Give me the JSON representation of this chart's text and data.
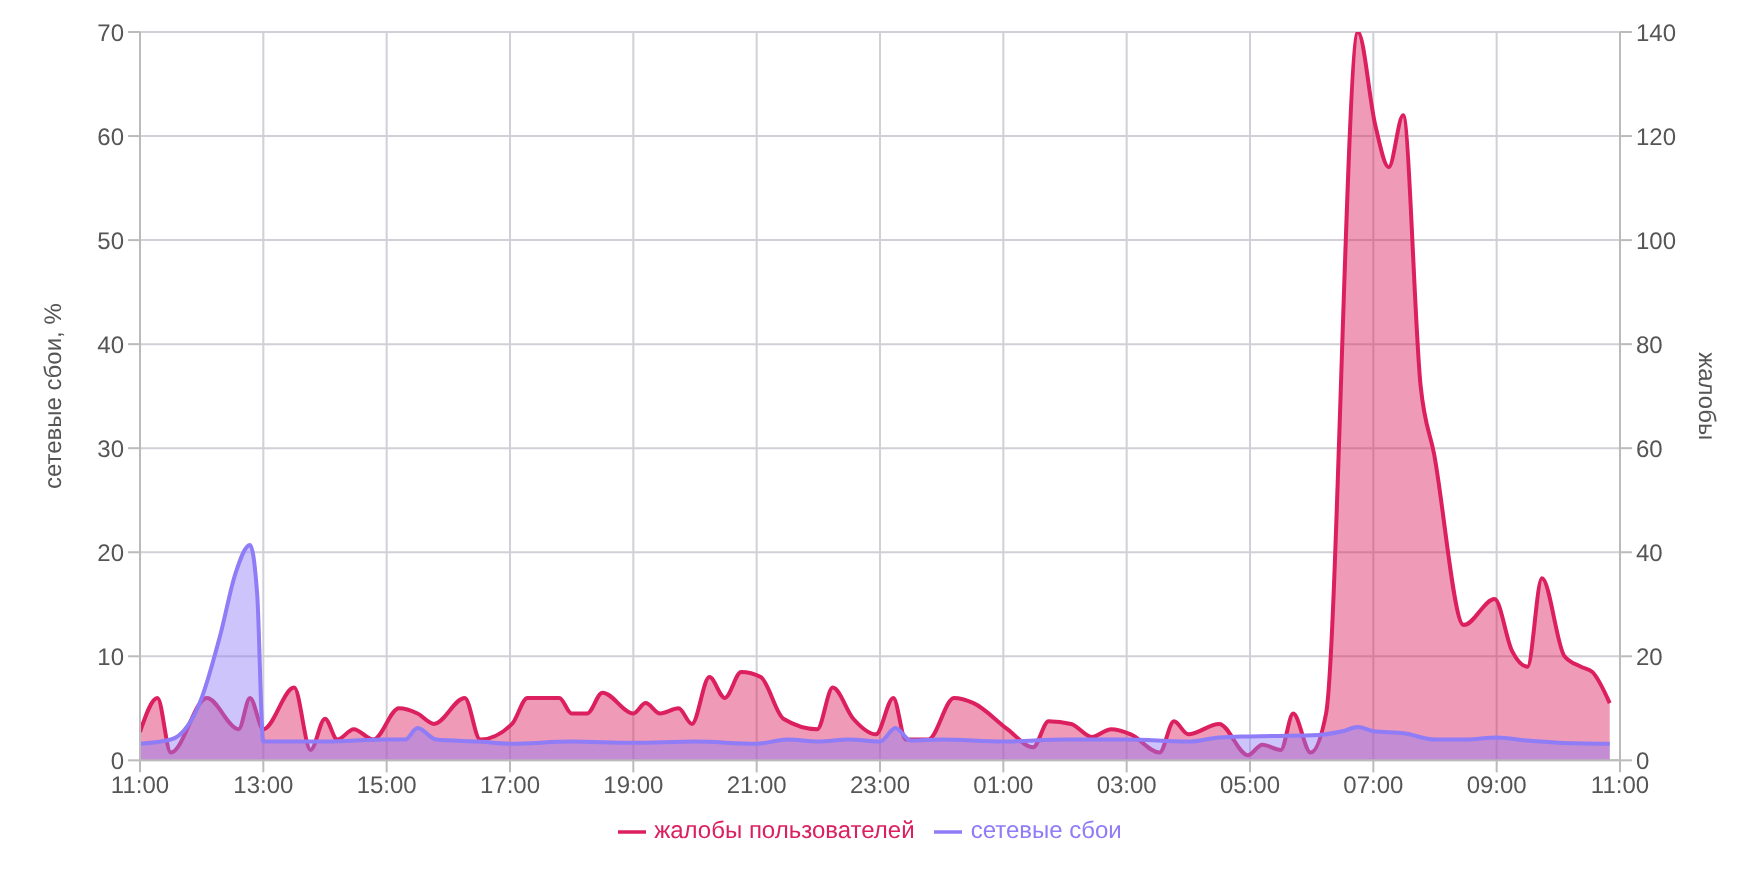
{
  "chart_data": {
    "type": "area",
    "xlim": [
      "2000-01-01T11:00",
      "2000-01-02T11:00"
    ],
    "xticks": [
      {
        "value": "2000-01-01T11:00",
        "label": "11:00"
      },
      {
        "value": "2000-01-01T13:00",
        "label": "13:00"
      },
      {
        "value": "2000-01-01T15:00",
        "label": "15:00"
      },
      {
        "value": "2000-01-01T17:00",
        "label": "17:00"
      },
      {
        "value": "2000-01-01T19:00",
        "label": "19:00"
      },
      {
        "value": "2000-01-01T21:00",
        "label": "21:00"
      },
      {
        "value": "2000-01-01T23:00",
        "label": "23:00"
      },
      {
        "value": "2000-01-02T01:00",
        "label": "01:00"
      },
      {
        "value": "2000-01-02T03:00",
        "label": "03:00"
      },
      {
        "value": "2000-01-02T05:00",
        "label": "05:00"
      },
      {
        "value": "2000-01-02T07:00",
        "label": "07:00"
      },
      {
        "value": "2000-01-02T09:00",
        "label": "09:00"
      },
      {
        "value": "2000-01-02T11:00",
        "label": "11:00"
      }
    ],
    "ylabel": "сетевые сбои, %",
    "y2label": "жалобы",
    "ylim": [
      0,
      70
    ],
    "yticks": [
      0,
      10,
      20,
      30,
      40,
      50,
      60,
      70
    ],
    "y2lim": [
      0,
      140
    ],
    "y2ticks": [
      0,
      20,
      40,
      60,
      80,
      100,
      120,
      140
    ],
    "grid": true,
    "legend": "bottom",
    "marker": "none",
    "series": [
      {
        "name": "жалобы пользователей",
        "color": "#dc1f5e",
        "axis": "y2",
        "x": [
          "2000-01-01T11:00",
          "2000-01-01T11:17",
          "2000-01-01T11:30",
          "2000-01-01T12:05",
          "2000-01-01T12:36",
          "2000-01-01T12:47",
          "2000-01-01T13:00",
          "2000-01-01T13:30",
          "2000-01-01T13:46",
          "2000-01-01T14:00",
          "2000-01-01T14:12",
          "2000-01-01T14:28",
          "2000-01-01T14:47",
          "2000-01-01T15:12",
          "2000-01-01T15:30",
          "2000-01-01T15:46",
          "2000-01-01T16:16",
          "2000-01-01T16:31",
          "2000-01-01T17:02",
          "2000-01-01T17:17",
          "2000-01-01T17:48",
          "2000-01-01T18:00",
          "2000-01-01T18:15",
          "2000-01-01T18:30",
          "2000-01-01T19:00",
          "2000-01-01T19:12",
          "2000-01-01T19:26",
          "2000-01-01T19:44",
          "2000-01-01T19:57",
          "2000-01-01T20:14",
          "2000-01-01T20:29",
          "2000-01-01T20:45",
          "2000-01-01T21:04",
          "2000-01-01T21:26",
          "2000-01-01T21:59",
          "2000-01-01T22:14",
          "2000-01-01T22:34",
          "2000-01-01T22:56",
          "2000-01-01T23:13",
          "2000-01-01T23:25",
          "2000-01-01T23:47",
          "2000-01-02T00:12",
          "2000-01-02T00:31",
          "2000-01-02T01:04",
          "2000-01-02T01:29",
          "2000-01-02T01:44",
          "2000-01-02T02:06",
          "2000-01-02T02:26",
          "2000-01-02T02:45",
          "2000-01-02T03:04",
          "2000-01-02T03:32",
          "2000-01-02T03:46",
          "2000-01-02T04:00",
          "2000-01-02T04:30",
          "2000-01-02T04:58",
          "2000-01-02T05:12",
          "2000-01-02T05:30",
          "2000-01-02T05:42",
          "2000-01-02T05:59",
          "2000-01-02T06:14",
          "2000-01-02T06:45",
          "2000-01-02T07:02",
          "2000-01-02T07:15",
          "2000-01-02T07:29",
          "2000-01-02T07:46",
          "2000-01-02T07:59",
          "2000-01-02T08:28",
          "2000-01-02T08:58",
          "2000-01-02T09:15",
          "2000-01-02T09:30",
          "2000-01-02T09:44",
          "2000-01-02T10:06",
          "2000-01-02T10:22",
          "2000-01-02T10:33",
          "2000-01-02T10:50"
        ],
        "values": [
          5.5,
          12,
          1.5,
          12,
          6,
          12,
          6,
          14,
          2,
          8,
          4,
          6,
          4,
          10,
          9,
          7,
          12,
          4,
          7,
          12,
          12,
          9,
          9,
          13,
          9,
          11,
          9,
          10,
          7,
          16,
          12,
          17,
          16,
          8,
          6,
          14,
          8,
          5,
          12,
          4,
          4,
          12,
          11,
          6,
          2.5,
          7.5,
          7,
          4.5,
          6,
          5,
          1.5,
          7.5,
          5,
          7,
          1,
          3,
          2,
          9,
          1.5,
          9,
          140,
          122,
          114,
          124,
          72,
          59,
          26,
          31,
          21,
          18,
          35,
          20,
          18,
          17,
          11
        ]
      },
      {
        "name": "сетевые сбои",
        "color": "#8f7cf7",
        "x": [
          "2000-01-01T11:00",
          "2000-01-01T11:30",
          "2000-01-01T12:00",
          "2000-01-01T12:18",
          "2000-01-01T12:33",
          "2000-01-01T12:47",
          "2000-01-01T12:54",
          "2000-01-01T13:00",
          "2000-01-01T14:00",
          "2000-01-01T15:00",
          "2000-01-01T15:18",
          "2000-01-01T15:30",
          "2000-01-01T15:48",
          "2000-01-01T16:30",
          "2000-01-01T17:00",
          "2000-01-01T18:00",
          "2000-01-01T19:00",
          "2000-01-01T20:00",
          "2000-01-01T21:00",
          "2000-01-01T21:30",
          "2000-01-01T22:00",
          "2000-01-01T22:30",
          "2000-01-01T23:00",
          "2000-01-01T23:15",
          "2000-01-01T23:30",
          "2000-01-02T00:00",
          "2000-01-02T01:00",
          "2000-01-02T02:00",
          "2000-01-02T03:00",
          "2000-01-02T04:00",
          "2000-01-02T04:30",
          "2000-01-02T05:00",
          "2000-01-02T06:00",
          "2000-01-02T06:30",
          "2000-01-02T06:45",
          "2000-01-02T07:00",
          "2000-01-02T07:30",
          "2000-01-02T08:00",
          "2000-01-02T08:30",
          "2000-01-02T09:00",
          "2000-01-02T09:30",
          "2000-01-02T10:00",
          "2000-01-02T10:50"
        ],
        "values": [
          1.6,
          2,
          6,
          12,
          18,
          20.7,
          16,
          1.8,
          1.8,
          2,
          2,
          3.1,
          2,
          1.8,
          1.6,
          1.8,
          1.7,
          1.8,
          1.6,
          2,
          1.8,
          2,
          1.8,
          3.1,
          1.9,
          2,
          1.8,
          2,
          2,
          1.8,
          2.2,
          2.3,
          2.4,
          2.8,
          3.2,
          2.8,
          2.6,
          2,
          2,
          2.2,
          1.9,
          1.7,
          1.6
        ]
      }
    ]
  }
}
